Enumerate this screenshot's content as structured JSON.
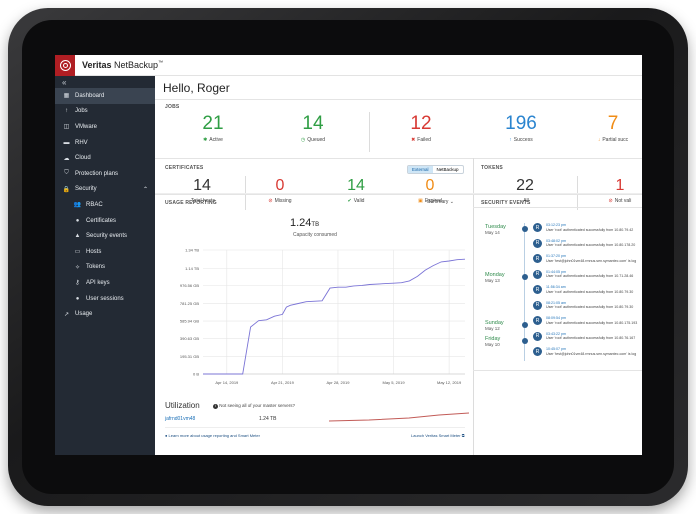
{
  "app": {
    "brand_bold": "Veritas",
    "brand_rest": " NetBackup",
    "tm": "™"
  },
  "sidebar": {
    "collapse": "«",
    "items": [
      {
        "label": "Dashboard",
        "icon": "dashboard-icon",
        "glyph": "▦",
        "active": true
      },
      {
        "label": "Jobs",
        "icon": "jobs-icon",
        "glyph": "↑"
      },
      {
        "label": "VMware",
        "icon": "vmware-icon",
        "glyph": "◫"
      },
      {
        "label": "RHV",
        "icon": "rhv-icon",
        "glyph": "▬"
      },
      {
        "label": "Cloud",
        "icon": "cloud-icon",
        "glyph": "☁"
      },
      {
        "label": "Protection plans",
        "icon": "shield-icon",
        "glyph": "⛉"
      },
      {
        "label": "Security",
        "icon": "lock-icon",
        "glyph": "🔒"
      },
      {
        "label": "RBAC",
        "icon": "users-icon",
        "glyph": "👥",
        "sub": true
      },
      {
        "label": "Certificates",
        "icon": "certificate-icon",
        "glyph": "●",
        "sub": true
      },
      {
        "label": "Security events",
        "icon": "warning-icon",
        "glyph": "▲",
        "sub": true
      },
      {
        "label": "Hosts",
        "icon": "hosts-icon",
        "glyph": "▭",
        "sub": true
      },
      {
        "label": "Tokens",
        "icon": "tokens-icon",
        "glyph": "✧",
        "sub": true
      },
      {
        "label": "API keys",
        "icon": "key-icon",
        "glyph": "⚷",
        "sub": true
      },
      {
        "label": "User sessions",
        "icon": "user-icon",
        "glyph": "●",
        "sub": true
      },
      {
        "label": "Usage",
        "icon": "usage-icon",
        "glyph": "↗"
      }
    ]
  },
  "greeting": "Hello, Roger",
  "jobs": {
    "label": "JOBS",
    "cards": [
      {
        "value": "21",
        "label": "Active",
        "color": "#2f9e44",
        "icon": "running-icon",
        "glyph": "✱"
      },
      {
        "value": "14",
        "label": "Queued",
        "color": "#2f9e44",
        "icon": "clock-icon",
        "glyph": "◷"
      },
      {
        "value": "12",
        "label": "Failed",
        "color": "#d83a34",
        "icon": "error-icon",
        "glyph": "✖"
      },
      {
        "value": "196",
        "label": "Success",
        "color": "#2a84cf",
        "icon": "success-icon",
        "glyph": "↑"
      },
      {
        "value": "7",
        "label": "Partial succ",
        "color": "#f08c16",
        "icon": "partial-icon",
        "glyph": "↓"
      }
    ]
  },
  "certificates": {
    "label": "CERTIFICATES",
    "toggle": {
      "external": "External",
      "netbackup": "NetBackup"
    },
    "cards": [
      {
        "value": "14",
        "label": "Total hosts",
        "color": "#333333",
        "glyph": ""
      },
      {
        "value": "0",
        "label": "Missing",
        "color": "#d83a34",
        "icon": "missing-icon",
        "glyph": "⊘"
      },
      {
        "value": "14",
        "label": "Valid",
        "color": "#2f9e44",
        "icon": "valid-icon",
        "glyph": "✔"
      },
      {
        "value": "0",
        "label": "Expired",
        "color": "#f08c16",
        "icon": "expired-icon",
        "glyph": "▣"
      }
    ]
  },
  "tokens": {
    "label": "TOKENS",
    "cards": [
      {
        "value": "22",
        "label": "All",
        "color": "#333333",
        "glyph": ""
      },
      {
        "value": "1",
        "label": "Not vali",
        "color": "#d83a34",
        "icon": "invalid-icon",
        "glyph": "⊘"
      }
    ]
  },
  "usage": {
    "label": "USAGE REPORTING",
    "dropdown": "Summary",
    "capacity_value": "1.24",
    "capacity_unit": "TB",
    "capacity_label": "Capacity consumed",
    "utilization_title": "Utilization",
    "utilization_note": "Not seeing all of your master servers?",
    "host": "jafrnd01vm48",
    "host_value": "1.24 TB",
    "learn_more": "Learn more about usage reporting and Smart Meter",
    "launch": "Launch Veritas Smart Meter"
  },
  "chart_data": {
    "type": "line",
    "title": "",
    "xlabel": "",
    "ylabel": "",
    "y_tick_labels": [
      "0 B",
      "195.31 GB",
      "390.63 GB",
      "585.94 GB",
      "781.25 GB",
      "976.56 GB",
      "1.14 TB",
      "1.34 TB"
    ],
    "y_ticks_gb": [
      0,
      195.31,
      390.63,
      585.94,
      781.25,
      976.56,
      1167.36,
      1372.16
    ],
    "x_tick_labels": [
      "Apr 14, 2019",
      "Apr 21, 2019",
      "Apr 28, 2019",
      "May 5, 2019",
      "May 12, 2019"
    ],
    "x_tick_days": [
      14,
      21,
      28,
      35,
      42
    ],
    "xlim_days": [
      11,
      44
    ],
    "ylim_gb": [
      0,
      1372.16
    ],
    "grid": true,
    "series": [
      {
        "x": [
          11,
          16,
          17,
          18,
          19,
          20,
          21,
          21.5,
          22,
          23,
          24,
          26,
          27,
          28,
          29,
          30,
          31,
          32,
          34,
          35,
          36,
          37,
          38,
          39,
          40,
          41,
          42,
          43,
          44
        ],
        "y": [
          0,
          0,
          520,
          590,
          600,
          640,
          660,
          740,
          760,
          780,
          800,
          810,
          950,
          960,
          960,
          975,
          980,
          990,
          1000,
          1005,
          1010,
          1030,
          1080,
          1150,
          1200,
          1240,
          1250,
          1265,
          1270
        ]
      }
    ]
  },
  "security_events": {
    "label": "SECURITY EVENTS",
    "days": [
      {
        "day": "Tuesday",
        "date": "May 14",
        "events": [
          {
            "time": "03:12:23 pm",
            "text": "User 'root' authenticated successfully from 10.80.79.42"
          },
          {
            "time": "03:48:02 pm",
            "text": "User 'root' authenticated successfully from 10.80.178.20"
          },
          {
            "time": "01:37:20 pm",
            "text": "User 'test@john01vm48.rmnus.sen.symantec.com' is log"
          }
        ]
      },
      {
        "day": "Monday",
        "date": "May 13",
        "events": [
          {
            "time": "01:44:05 pm",
            "text": "User 'root' authenticated successfully from 10.71.28.46"
          },
          {
            "time": "11:56:34 am",
            "text": "User 'root' authenticated successfully from 10.80.79.30"
          },
          {
            "time": "08:21:05 am",
            "text": "User 'root' authenticated successfully from 10.80.79.30"
          }
        ]
      },
      {
        "day": "Sunday",
        "date": "May 12",
        "events": [
          {
            "time": "08:09:54 pm",
            "text": "User 'root' authenticated successfully from 10.80.175.193"
          }
        ]
      },
      {
        "day": "Friday",
        "date": "May 10",
        "events": [
          {
            "time": "03:43:22 pm",
            "text": "User 'root' authenticated successfully from 10.80.76.167"
          },
          {
            "time": "10:45:07 pm",
            "text": "User 'test@john01vm48.rmnus.sen.symantec.com' is log"
          }
        ]
      }
    ]
  }
}
